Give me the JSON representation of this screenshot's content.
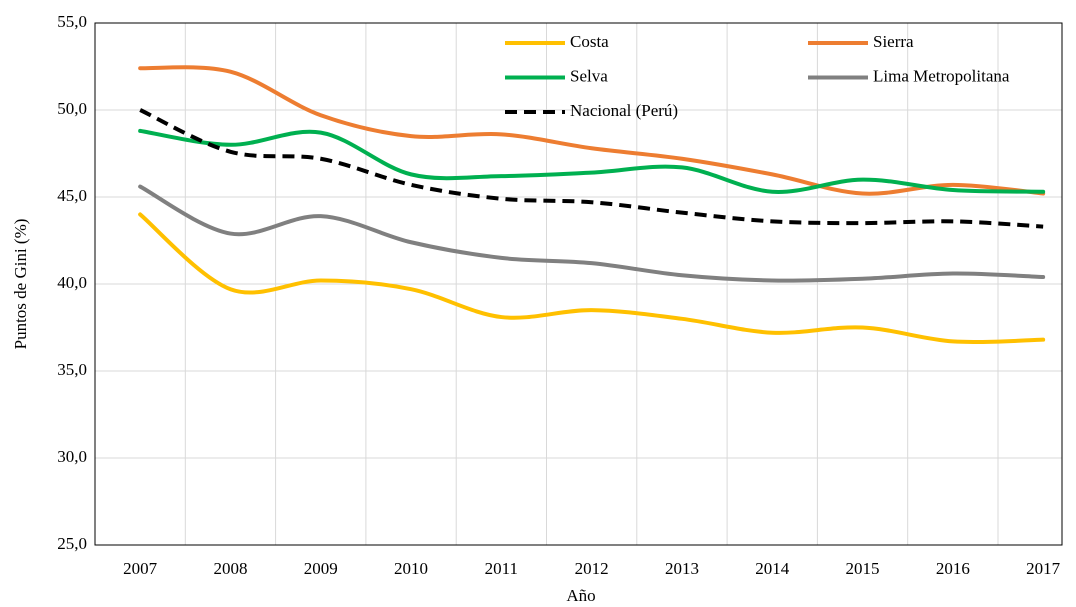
{
  "chart_data": {
    "type": "line",
    "x_label": "Año",
    "y_label": "Puntos de Gini (%)",
    "categories": [
      "2007",
      "2008",
      "2009",
      "2010",
      "2011",
      "2012",
      "2013",
      "2014",
      "2015",
      "2016",
      "2017"
    ],
    "series": [
      {
        "name": "Costa",
        "color": "#ffc000",
        "dashed": false,
        "values": [
          44.0,
          39.7,
          40.2,
          39.7,
          38.1,
          38.5,
          38.0,
          37.2,
          37.5,
          36.7,
          36.8
        ]
      },
      {
        "name": "Sierra",
        "color": "#ed7d31",
        "dashed": false,
        "values": [
          52.4,
          52.2,
          49.7,
          48.5,
          48.6,
          47.8,
          47.2,
          46.3,
          45.2,
          45.7,
          45.2
        ]
      },
      {
        "name": "Selva",
        "color": "#00b050",
        "dashed": false,
        "values": [
          48.8,
          48.0,
          48.7,
          46.3,
          46.2,
          46.4,
          46.7,
          45.3,
          46.0,
          45.4,
          45.3
        ]
      },
      {
        "name": "Lima Metropolitana",
        "color": "#808080",
        "dashed": false,
        "values": [
          45.6,
          42.9,
          43.9,
          42.4,
          41.5,
          41.2,
          40.5,
          40.2,
          40.3,
          40.6,
          40.4
        ]
      },
      {
        "name": "Nacional (Perú)",
        "color": "#000000",
        "dashed": true,
        "values": [
          50.0,
          47.6,
          47.2,
          45.7,
          44.9,
          44.7,
          44.1,
          43.6,
          43.5,
          43.6,
          43.3
        ]
      }
    ],
    "ylim": [
      25,
      55
    ],
    "yticks": [
      {
        "value": 25,
        "label": "25,0"
      },
      {
        "value": 30,
        "label": "30,0"
      },
      {
        "value": 35,
        "label": "35,0"
      },
      {
        "value": 40,
        "label": "40,0"
      },
      {
        "value": 45,
        "label": "45,0"
      },
      {
        "value": 50,
        "label": "50,0"
      },
      {
        "value": 55,
        "label": "55,0"
      }
    ],
    "grid": true,
    "legend": "top"
  }
}
